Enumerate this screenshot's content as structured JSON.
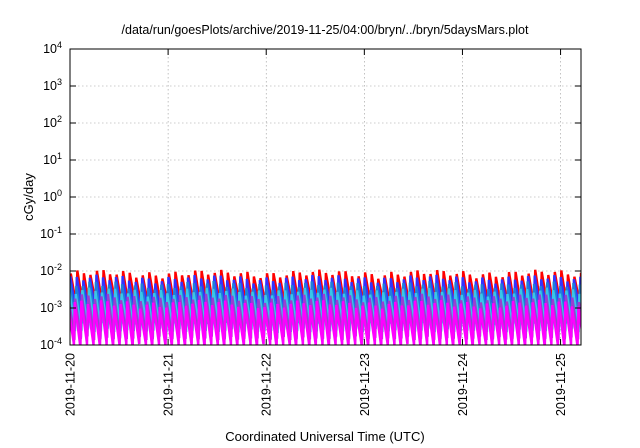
{
  "chart_data": {
    "type": "line",
    "title": "/data/run/goesPlots/archive/2019-11-25/04:00/bryn/../bryn/5daysMars.plot",
    "xlabel": "Coordinated Universal Time (UTC)",
    "ylabel": "cGy/day",
    "yscale": "log",
    "ylim": [
      0.0001,
      10000
    ],
    "xlim": [
      "2019-11-20 00:00",
      "2019-11-25 05:00"
    ],
    "grid": true,
    "ytick_labels": [
      {
        "base": "10",
        "exp": "-4"
      },
      {
        "base": "10",
        "exp": "-3"
      },
      {
        "base": "10",
        "exp": "-2"
      },
      {
        "base": "10",
        "exp": "-1"
      },
      {
        "base": "10",
        "exp": "0"
      },
      {
        "base": "10",
        "exp": "1"
      },
      {
        "base": "10",
        "exp": "2"
      },
      {
        "base": "10",
        "exp": "3"
      },
      {
        "base": "10",
        "exp": "4"
      }
    ],
    "xtick_labels": [
      "2019-11-20",
      "2019-11-21",
      "2019-11-22",
      "2019-11-23",
      "2019-11-24",
      "2019-11-25"
    ],
    "sawtooth_period_hours": 1.6,
    "series": [
      {
        "color": "#ff0000",
        "peak": 0.0085,
        "trough": 0.0011
      },
      {
        "color": "#3333ff",
        "peak": 0.0062,
        "trough": 0.00075
      },
      {
        "color": "#1f7fd8",
        "peak": 0.0042,
        "trough": 0.00042
      },
      {
        "color": "#39c6e8",
        "peak": 0.0028,
        "trough": 0.00026
      },
      {
        "color": "#9a3fd0",
        "peak": 0.0019,
        "trough": 0.00016
      },
      {
        "color": "#ff00ff",
        "peak": 0.0013,
        "trough": 0.0001
      }
    ]
  }
}
